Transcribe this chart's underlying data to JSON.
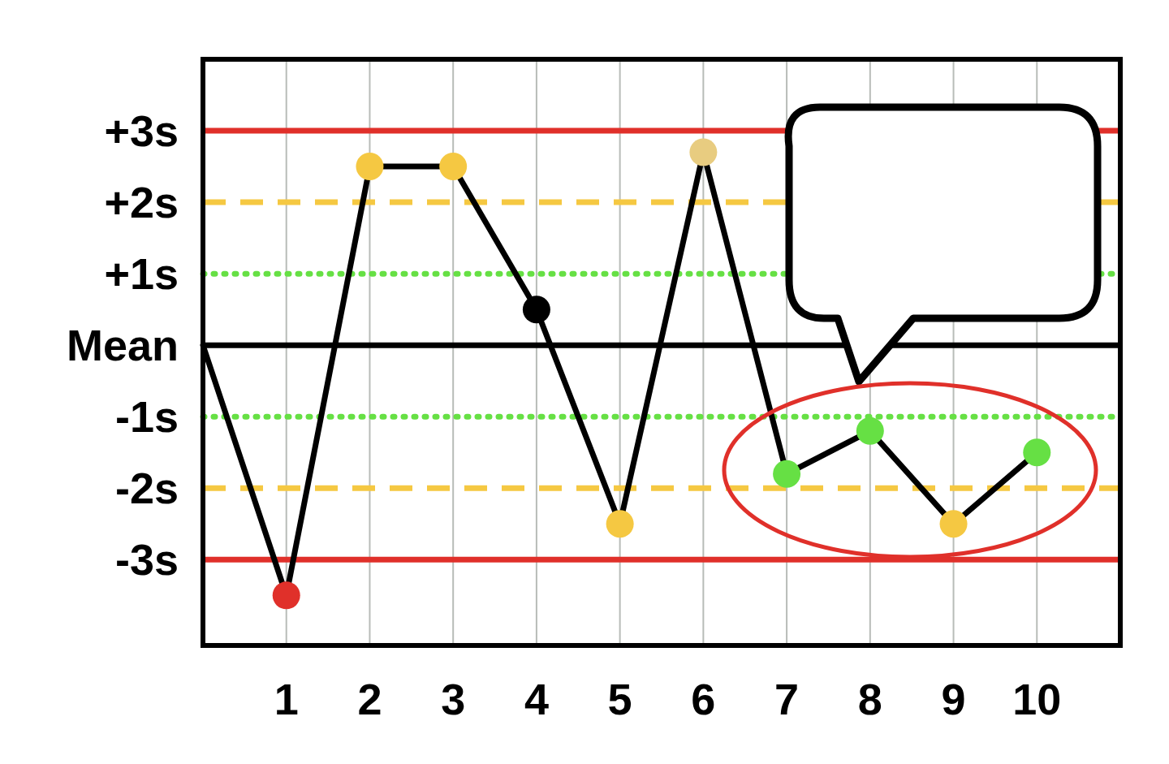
{
  "chart_data": {
    "type": "line",
    "x": [
      0,
      1,
      2,
      3,
      4,
      5,
      6,
      7,
      8,
      9,
      10
    ],
    "series": [
      {
        "color": "#000000",
        "marker": "circle",
        "colors": [
          null,
          "#e0302a",
          "#f5c842",
          "#f5c842",
          "#000000",
          "#f5c842",
          "#e8cc80",
          "#66e044",
          "#66e044",
          "#f5c842",
          "#66e044"
        ],
        "values": [
          0,
          -3.5,
          2.5,
          2.5,
          0.5,
          -2.5,
          2.7,
          -1.8,
          -1.2,
          -2.5,
          -1.5
        ]
      }
    ],
    "xlim": [
      0,
      11
    ],
    "xticks": [
      1,
      2,
      3,
      4,
      5,
      6,
      7,
      8,
      9,
      10
    ],
    "ylim": [
      -4.2,
      4
    ],
    "yticks": [
      {
        "value": 3,
        "label": "+3s"
      },
      {
        "value": 2,
        "label": "+2s"
      },
      {
        "value": 1,
        "label": "+1s"
      },
      {
        "value": 0,
        "label": "Mean"
      },
      {
        "value": -1,
        "label": "-1s"
      },
      {
        "value": -2,
        "label": "-2s"
      },
      {
        "value": -3,
        "label": "-3s"
      }
    ],
    "grid": "x",
    "ref_lines": [
      {
        "axis": "y",
        "value": 3,
        "color": "#e0302a",
        "line_style": "solid"
      },
      {
        "axis": "y",
        "value": 2,
        "color": "#f5c842",
        "line_style": "dashed"
      },
      {
        "axis": "y",
        "value": 1,
        "color": "#66e044",
        "line_style": "dotted"
      },
      {
        "axis": "y",
        "value": 0,
        "color": "#000000",
        "line_style": "solid"
      },
      {
        "axis": "y",
        "value": -1,
        "color": "#66e044",
        "line_style": "dotted"
      },
      {
        "axis": "y",
        "value": -2,
        "color": "#f5c842",
        "line_style": "dashed"
      },
      {
        "axis": "y",
        "value": -3,
        "color": "#e0302a",
        "line_style": "solid"
      }
    ]
  }
}
